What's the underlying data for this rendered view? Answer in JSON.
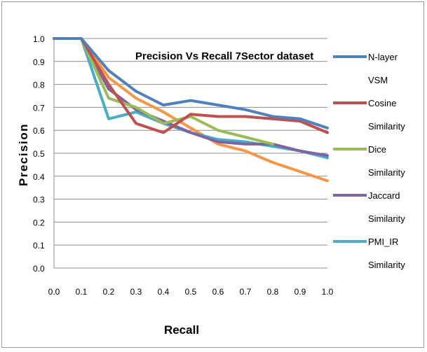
{
  "chart_data": {
    "type": "line",
    "title": "Precision Vs Recall 7Sector dataset",
    "xlabel": "Recall",
    "ylabel": "Precision",
    "x": [
      0.0,
      0.1,
      0.2,
      0.3,
      0.4,
      0.5,
      0.6,
      0.7,
      0.8,
      0.9,
      1.0
    ],
    "x_tick_labels": [
      "0.0",
      "0.1",
      "0.2",
      "0.3",
      "0.4",
      "0.5",
      "0.6",
      "0.7",
      "0.8",
      "0.9",
      "1.0"
    ],
    "y_tick_labels": [
      "0.0",
      "0.1",
      "0.2",
      "0.3",
      "0.4",
      "0.5",
      "0.6",
      "0.7",
      "0.8",
      "0.9",
      "1.0"
    ],
    "xlim": [
      0.0,
      1.0
    ],
    "ylim": [
      0.0,
      1.0
    ],
    "grid": "horizontal",
    "legend_position": "right",
    "series": [
      {
        "name": "N-layer VSM",
        "legend_lines": [
          "N-layer",
          "VSM"
        ],
        "color": "#4F81BD",
        "values": [
          1.0,
          1.0,
          0.86,
          0.77,
          0.71,
          0.73,
          0.71,
          0.69,
          0.66,
          0.65,
          0.61
        ]
      },
      {
        "name": "Cosine Similarity",
        "legend_lines": [
          "Cosine",
          "Similarity"
        ],
        "color": "#C0504D",
        "values": [
          1.0,
          1.0,
          0.8,
          0.63,
          0.59,
          0.67,
          0.66,
          0.66,
          0.65,
          0.64,
          0.59
        ]
      },
      {
        "name": "Dice Similarity",
        "legend_lines": [
          "Dice",
          "Similarity"
        ],
        "color": "#9BBB59",
        "values": [
          1.0,
          1.0,
          0.74,
          0.7,
          0.63,
          0.66,
          0.6,
          0.57,
          0.54,
          null,
          null
        ]
      },
      {
        "name": "Jaccard Similarity",
        "legend_lines": [
          "Jaccard",
          "Similarity"
        ],
        "color": "#8064A2",
        "values": [
          1.0,
          1.0,
          0.78,
          0.69,
          0.64,
          0.59,
          0.55,
          0.54,
          0.54,
          0.51,
          0.49
        ]
      },
      {
        "name": "PMI_IR Similarity",
        "legend_lines": [
          "PMI_IR",
          "Similarity"
        ],
        "color": "#4BACC6",
        "values": [
          1.0,
          1.0,
          0.65,
          0.68,
          0.63,
          0.59,
          0.56,
          0.55,
          0.53,
          0.51,
          0.48
        ]
      },
      {
        "name": "",
        "legend_lines": [],
        "color": "#F79646",
        "values": [
          1.0,
          1.0,
          0.83,
          0.74,
          0.68,
          0.61,
          0.54,
          0.51,
          0.46,
          0.42,
          0.38
        ]
      }
    ]
  }
}
